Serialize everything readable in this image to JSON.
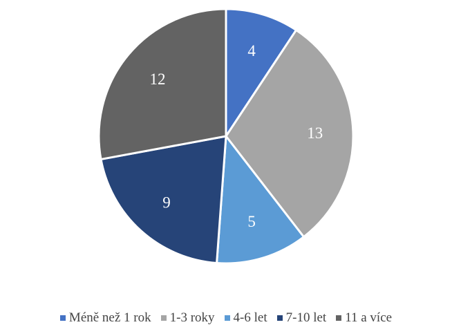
{
  "chart_data": {
    "type": "pie",
    "categories": [
      "Méně než 1 rok",
      "1-3 roky",
      "4-6 let",
      "7-10 let",
      "11 a více"
    ],
    "values": [
      4,
      13,
      5,
      9,
      12
    ],
    "colors": [
      "#4472c4",
      "#a5a5a5",
      "#5b9bd5",
      "#264478",
      "#636363"
    ],
    "legend_position": "bottom"
  }
}
